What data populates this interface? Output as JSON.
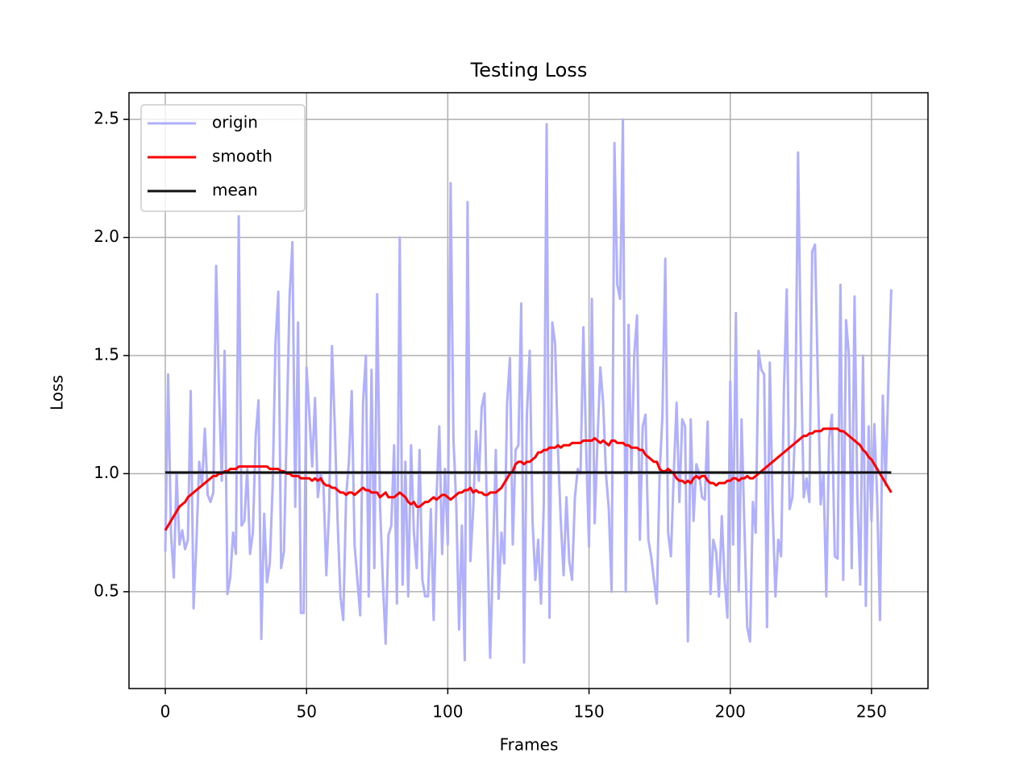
{
  "chart_data": {
    "type": "line",
    "title": "Testing Loss",
    "xlabel": "Frames",
    "ylabel": "Loss",
    "x": [
      0,
      1,
      2,
      3,
      4,
      5,
      6,
      7,
      8,
      9,
      10,
      11,
      12,
      13,
      14,
      15,
      16,
      17,
      18,
      19,
      20,
      21,
      22,
      23,
      24,
      25,
      26,
      27,
      28,
      29,
      30,
      31,
      32,
      33,
      34,
      35,
      36,
      37,
      38,
      39,
      40,
      41,
      42,
      43,
      44,
      45,
      46,
      47,
      48,
      49,
      50,
      51,
      52,
      53,
      54,
      55,
      56,
      57,
      58,
      59,
      60,
      61,
      62,
      63,
      64,
      65,
      66,
      67,
      68,
      69,
      70,
      71,
      72,
      73,
      74,
      75,
      76,
      77,
      78,
      79,
      80,
      81,
      82,
      83,
      84,
      85,
      86,
      87,
      88,
      89,
      90,
      91,
      92,
      93,
      94,
      95,
      96,
      97,
      98,
      99,
      100,
      101,
      102,
      103,
      104,
      105,
      106,
      107,
      108,
      109,
      110,
      111,
      112,
      113,
      114,
      115,
      116,
      117,
      118,
      119,
      120,
      121,
      122,
      123,
      124,
      125,
      126,
      127,
      128,
      129,
      130,
      131,
      132,
      133,
      134,
      135,
      136,
      137,
      138,
      139,
      140,
      141,
      142,
      143,
      144,
      145,
      146,
      147,
      148,
      149,
      150,
      151,
      152,
      153,
      154,
      155,
      156,
      157,
      158,
      159,
      160,
      161,
      162,
      163,
      164,
      165,
      166,
      167,
      168,
      169,
      170,
      171,
      172,
      173,
      174,
      175,
      176,
      177,
      178,
      179,
      180,
      181,
      182,
      183,
      184,
      185,
      186,
      187,
      188,
      189,
      190,
      191,
      192,
      193,
      194,
      195,
      196,
      197,
      198,
      199,
      200,
      201,
      202,
      203,
      204,
      205,
      206,
      207,
      208,
      209,
      210,
      211,
      212,
      213,
      214,
      215,
      216,
      217,
      218,
      219,
      220,
      221,
      222,
      223,
      224,
      225,
      226,
      227,
      228,
      229,
      230,
      231,
      232,
      233,
      234,
      235,
      236,
      237,
      238,
      239,
      240,
      241,
      242,
      243,
      244,
      245,
      246,
      247,
      248,
      249,
      250,
      251,
      252,
      253,
      254,
      255,
      256,
      257
    ],
    "series": [
      {
        "name": "origin",
        "color": "#b0b0fd",
        "values": [
          0.67,
          1.42,
          0.75,
          0.56,
          1.0,
          0.7,
          0.76,
          0.68,
          0.72,
          1.35,
          0.43,
          0.7,
          1.05,
          0.95,
          1.19,
          0.91,
          0.88,
          0.92,
          1.88,
          1.35,
          0.97,
          1.52,
          0.49,
          0.56,
          0.75,
          0.66,
          2.09,
          0.78,
          0.8,
          1.02,
          0.66,
          0.75,
          1.16,
          1.31,
          0.3,
          0.83,
          0.54,
          0.62,
          0.95,
          1.55,
          1.77,
          0.6,
          0.67,
          1.2,
          1.75,
          1.98,
          0.86,
          1.64,
          0.41,
          0.41,
          1.45,
          1.25,
          1.03,
          1.32,
          0.9,
          1.0,
          0.95,
          0.57,
          0.85,
          1.54,
          1.2,
          0.8,
          0.48,
          0.38,
          0.9,
          1.05,
          1.35,
          0.7,
          0.55,
          0.4,
          1.3,
          1.5,
          0.48,
          1.44,
          0.6,
          1.76,
          0.87,
          0.55,
          0.28,
          0.74,
          0.78,
          1.12,
          0.45,
          2.0,
          0.53,
          1.05,
          0.48,
          1.12,
          0.75,
          0.6,
          1.1,
          0.55,
          0.48,
          0.48,
          0.85,
          0.38,
          0.9,
          1.2,
          0.66,
          1.02,
          0.7,
          2.23,
          1.15,
          0.87,
          0.34,
          0.78,
          0.21,
          2.15,
          0.63,
          0.85,
          1.18,
          0.97,
          1.28,
          1.34,
          0.75,
          0.22,
          0.65,
          1.1,
          0.47,
          0.75,
          0.62,
          1.3,
          1.49,
          0.7,
          1.1,
          1.12,
          1.72,
          0.2,
          1.25,
          1.52,
          0.8,
          0.55,
          0.72,
          0.45,
          0.88,
          2.48,
          0.39,
          1.64,
          1.55,
          1.1,
          0.8,
          0.57,
          0.9,
          0.63,
          0.55,
          0.9,
          1.02,
          1.0,
          1.62,
          1.1,
          0.69,
          1.74,
          0.79,
          1.14,
          1.45,
          1.3,
          1.0,
          0.85,
          0.5,
          2.4,
          1.8,
          1.74,
          2.5,
          0.5,
          1.63,
          1.0,
          1.5,
          1.67,
          0.72,
          1.2,
          1.25,
          0.72,
          0.65,
          0.55,
          0.45,
          1.0,
          1.25,
          1.91,
          0.75,
          0.65,
          1.0,
          1.3,
          0.88,
          1.23,
          1.2,
          0.29,
          1.23,
          0.8,
          1.04,
          1.0,
          0.9,
          0.89,
          1.22,
          0.49,
          0.72,
          0.67,
          0.48,
          0.82,
          0.55,
          0.39,
          1.39,
          0.7,
          1.68,
          0.5,
          1.23,
          0.78,
          0.35,
          0.29,
          0.88,
          0.75,
          1.52,
          1.44,
          1.42,
          0.35,
          1.47,
          0.85,
          0.48,
          0.72,
          0.65,
          1.35,
          1.78,
          0.85,
          0.9,
          1.2,
          2.36,
          1.5,
          0.9,
          0.98,
          0.88,
          1.94,
          1.97,
          1.4,
          0.87,
          1.0,
          0.48,
          1.15,
          1.25,
          0.65,
          0.64,
          1.8,
          0.55,
          1.65,
          1.5,
          0.6,
          1.75,
          0.9,
          0.53,
          1.5,
          0.44,
          1.2,
          0.8,
          1.21,
          0.9,
          0.38,
          1.33,
          0.95,
          1.4,
          1.78
        ]
      },
      {
        "name": "smooth",
        "color": "#ff0000",
        "values": [
          0.76,
          0.78,
          0.8,
          0.82,
          0.84,
          0.86,
          0.87,
          0.88,
          0.9,
          0.91,
          0.92,
          0.93,
          0.94,
          0.95,
          0.96,
          0.97,
          0.98,
          0.99,
          0.99,
          1.0,
          1.0,
          1.01,
          1.01,
          1.02,
          1.02,
          1.02,
          1.03,
          1.03,
          1.03,
          1.03,
          1.03,
          1.03,
          1.03,
          1.03,
          1.03,
          1.03,
          1.03,
          1.02,
          1.02,
          1.02,
          1.02,
          1.01,
          1.01,
          1.0,
          1.0,
          0.99,
          0.99,
          0.99,
          0.98,
          0.98,
          0.98,
          0.98,
          0.97,
          0.98,
          0.97,
          0.98,
          0.96,
          0.95,
          0.95,
          0.94,
          0.94,
          0.93,
          0.92,
          0.92,
          0.91,
          0.92,
          0.92,
          0.91,
          0.92,
          0.93,
          0.94,
          0.93,
          0.93,
          0.92,
          0.92,
          0.92,
          0.9,
          0.91,
          0.92,
          0.9,
          0.9,
          0.9,
          0.91,
          0.92,
          0.91,
          0.9,
          0.88,
          0.87,
          0.88,
          0.86,
          0.86,
          0.87,
          0.88,
          0.88,
          0.89,
          0.9,
          0.89,
          0.9,
          0.91,
          0.91,
          0.9,
          0.89,
          0.9,
          0.91,
          0.92,
          0.92,
          0.93,
          0.93,
          0.94,
          0.92,
          0.93,
          0.92,
          0.92,
          0.91,
          0.91,
          0.92,
          0.92,
          0.92,
          0.93,
          0.94,
          0.96,
          0.98,
          1.0,
          1.01,
          1.04,
          1.05,
          1.05,
          1.04,
          1.05,
          1.05,
          1.06,
          1.07,
          1.09,
          1.09,
          1.1,
          1.1,
          1.11,
          1.11,
          1.11,
          1.12,
          1.11,
          1.12,
          1.12,
          1.12,
          1.13,
          1.13,
          1.13,
          1.13,
          1.14,
          1.14,
          1.14,
          1.14,
          1.15,
          1.14,
          1.13,
          1.14,
          1.13,
          1.12,
          1.14,
          1.14,
          1.13,
          1.13,
          1.13,
          1.12,
          1.12,
          1.11,
          1.11,
          1.11,
          1.1,
          1.1,
          1.08,
          1.07,
          1.06,
          1.05,
          1.05,
          1.02,
          1.01,
          1.01,
          1.02,
          1.01,
          1.0,
          0.98,
          0.97,
          0.97,
          0.96,
          0.97,
          0.96,
          0.98,
          0.99,
          0.98,
          0.99,
          0.99,
          0.97,
          0.96,
          0.96,
          0.95,
          0.96,
          0.96,
          0.96,
          0.97,
          0.97,
          0.98,
          0.98,
          0.97,
          0.98,
          0.98,
          0.99,
          0.98,
          0.98,
          0.99,
          1.0,
          1.01,
          1.02,
          1.03,
          1.04,
          1.05,
          1.06,
          1.07,
          1.08,
          1.09,
          1.1,
          1.11,
          1.12,
          1.13,
          1.14,
          1.15,
          1.16,
          1.16,
          1.17,
          1.17,
          1.18,
          1.18,
          1.18,
          1.19,
          1.19,
          1.19,
          1.19,
          1.19,
          1.19,
          1.18,
          1.18,
          1.17,
          1.16,
          1.15,
          1.14,
          1.13,
          1.12,
          1.1,
          1.09,
          1.07,
          1.06,
          1.04,
          1.02,
          1.0,
          0.98,
          0.96,
          0.94,
          0.92
        ]
      },
      {
        "name": "mean",
        "color": "#111111",
        "x": [
          0,
          257
        ],
        "values": [
          1.005,
          1.005
        ]
      }
    ],
    "xlim": [
      -12.85,
      270
    ],
    "ylim": [
      0.09,
      2.613
    ],
    "xticks": [
      0,
      50,
      100,
      150,
      200,
      250
    ],
    "yticks": [
      0.5,
      {
        "value": 1,
        "label": "1.0"
      },
      1.5,
      {
        "value": 2,
        "label": "2.0"
      },
      2.5
    ],
    "grid": true,
    "legend": "upper left"
  }
}
